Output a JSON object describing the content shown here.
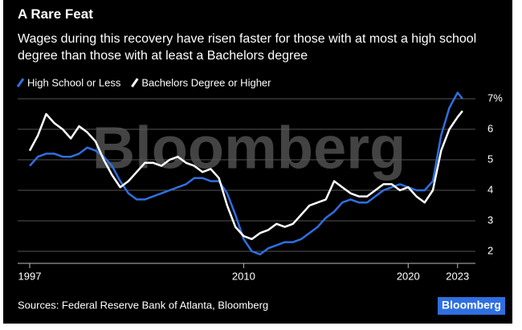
{
  "chart_data": {
    "type": "line",
    "title": "A Rare Feat",
    "subtitle": "Wages during this recovery have risen faster for those with at most a high school degree than those with at least a Bachelors degree",
    "watermark": "Bloomberg",
    "source": "Sources: Federal Reserve Bank of Atlanta, Bloomberg",
    "logo": "Bloomberg",
    "x": [
      1997,
      1997.5,
      1998,
      1998.5,
      1999,
      1999.5,
      2000,
      2000.5,
      2001,
      2001.5,
      2002,
      2002.5,
      2003,
      2003.5,
      2004,
      2004.5,
      2005,
      2005.5,
      2006,
      2006.5,
      2007,
      2007.5,
      2008,
      2008.5,
      2009,
      2009.5,
      2010,
      2010.5,
      2011,
      2011.5,
      2012,
      2012.5,
      2013,
      2013.5,
      2014,
      2014.5,
      2015,
      2015.5,
      2016,
      2016.5,
      2017,
      2017.5,
      2018,
      2018.5,
      2019,
      2019.5,
      2020,
      2020.5,
      2021,
      2021.5,
      2022,
      2022.5,
      2023,
      2023.3
    ],
    "series": [
      {
        "name": "High School or Less",
        "color": "#2f6fe0",
        "values": [
          4.8,
          5.1,
          5.2,
          5.2,
          5.1,
          5.1,
          5.2,
          5.4,
          5.3,
          5.1,
          4.8,
          4.3,
          3.9,
          3.7,
          3.7,
          3.8,
          3.9,
          4.0,
          4.1,
          4.2,
          4.4,
          4.4,
          4.3,
          4.3,
          3.9,
          3.2,
          2.4,
          2.0,
          1.9,
          2.1,
          2.2,
          2.3,
          2.3,
          2.4,
          2.6,
          2.8,
          3.1,
          3.3,
          3.6,
          3.7,
          3.6,
          3.6,
          3.8,
          4.0,
          4.1,
          4.2,
          4.1,
          4.0,
          4.0,
          4.3,
          5.8,
          6.7,
          7.2,
          7.0
        ]
      },
      {
        "name": "Bachelors Degree or Higher",
        "color": "#ffffff",
        "values": [
          5.3,
          5.8,
          6.5,
          6.2,
          6.0,
          5.7,
          6.1,
          5.9,
          5.6,
          5.0,
          4.5,
          4.1,
          4.3,
          4.6,
          4.9,
          4.9,
          4.8,
          5.0,
          5.1,
          4.9,
          4.8,
          4.6,
          4.7,
          4.4,
          3.5,
          2.8,
          2.5,
          2.4,
          2.6,
          2.7,
          2.9,
          2.8,
          2.9,
          3.2,
          3.5,
          3.6,
          3.7,
          4.3,
          4.1,
          3.9,
          3.8,
          3.8,
          4.0,
          4.2,
          4.2,
          4.0,
          4.1,
          3.8,
          3.6,
          4.0,
          5.3,
          6.0,
          6.4,
          6.6
        ]
      }
    ],
    "xlim": [
      1997,
      2023.5
    ],
    "xticks": [
      1997,
      2010,
      2020,
      2023
    ],
    "ylim": [
      2,
      7
    ],
    "yticks": [
      2,
      3,
      4,
      5,
      6,
      {
        "value": 7,
        "label": "7%"
      }
    ],
    "grid": true
  }
}
